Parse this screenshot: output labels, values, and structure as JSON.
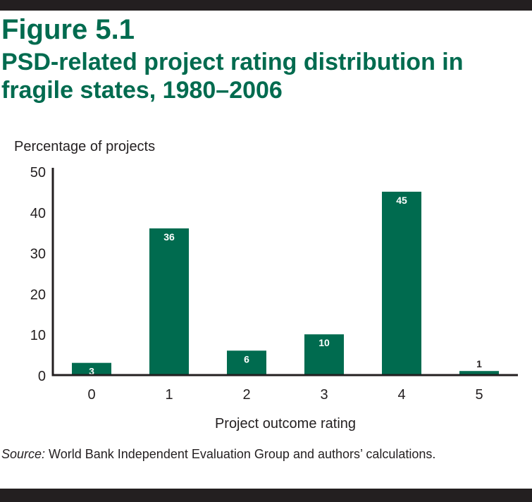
{
  "figure_label": "Figure 5.1",
  "source_label": "Source:",
  "source_text": " World Bank Independent Evaluation Group and authors’ calculations.",
  "colors": {
    "bar": "#006b4f",
    "title": "#006b4f",
    "frame": "#231f20"
  },
  "chart_data": {
    "type": "bar",
    "title": "PSD-related project rating distribution in fragile states, 1980–2006",
    "xlabel": "Project outcome rating",
    "ylabel": "Percentage of projects",
    "categories": [
      "0",
      "1",
      "2",
      "3",
      "4",
      "5"
    ],
    "values": [
      3,
      36,
      6,
      10,
      45,
      1
    ],
    "ylim": [
      0,
      50
    ],
    "yticks": [
      0,
      10,
      20,
      30,
      40,
      50
    ],
    "grid": false,
    "data_labels": true
  }
}
